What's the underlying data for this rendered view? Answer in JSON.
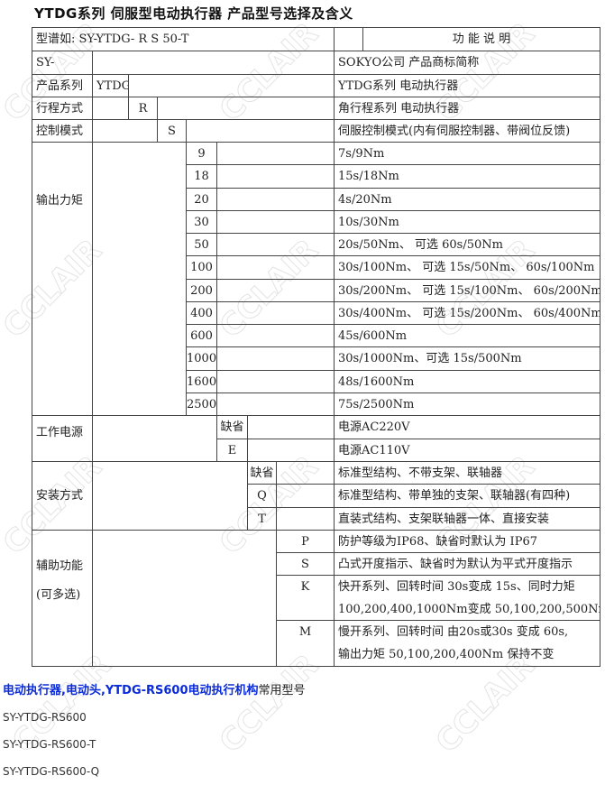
{
  "title": "YTDG系列  伺服型电动执行器  产品型号选择及含义",
  "header": {
    "example": "型谱如:  SY-YTDG- R S 50-T",
    "function": "功 能 说 明"
  },
  "rows": {
    "sy": {
      "code": "SY-",
      "desc": "SOKYO公司 产品商标简称"
    },
    "series": {
      "label": "产品系列",
      "code": "YTDG",
      "desc": "YTDG系列  电动执行器"
    },
    "travel": {
      "label": "行程方式",
      "code": "R",
      "desc": "角行程系列  电动执行器"
    },
    "control": {
      "label": "控制模式",
      "code": "S",
      "desc": "伺服控制模式(内有伺服控制器、带阀位反馈)"
    }
  },
  "torque": {
    "label": "输出力矩",
    "items": [
      {
        "code": "9",
        "desc": "7s/9Nm"
      },
      {
        "code": "18",
        "desc": "15s/18Nm"
      },
      {
        "code": "20",
        "desc": "4s/20Nm"
      },
      {
        "code": "30",
        "desc": "10s/30Nm"
      },
      {
        "code": "50",
        "desc": "20s/50Nm、                  可选 60s/50Nm"
      },
      {
        "code": "100",
        "desc": "30s/100Nm、 可选 15s/50Nm、  60s/100Nm"
      },
      {
        "code": "200",
        "desc": "30s/200Nm、 可选 15s/100Nm、 60s/200Nm"
      },
      {
        "code": "400",
        "desc": "30s/400Nm、 可选 15s/200Nm、 60s/400Nm"
      },
      {
        "code": "600",
        "desc": "45s/600Nm"
      },
      {
        "code": "1000",
        "desc": "30s/1000Nm、可选 15s/500Nm"
      },
      {
        "code": "1600",
        "desc": "48s/1600Nm"
      },
      {
        "code": "2500",
        "desc": "75s/2500Nm"
      }
    ]
  },
  "power": {
    "label": "工作电源",
    "items": [
      {
        "code": "缺省",
        "desc": "电源AC220V"
      },
      {
        "code": "E",
        "desc": "电源AC110V"
      }
    ]
  },
  "mount": {
    "label": "安装方式",
    "items": [
      {
        "code": "缺省",
        "desc": "标准型结构、不带支架、联轴器"
      },
      {
        "code": "Q",
        "desc": "标准型结构、带单独的支架、联轴器(有四种)"
      },
      {
        "code": "T",
        "desc": "直装式结构、支架联轴器一体、直接安装"
      }
    ]
  },
  "aux": {
    "label": "辅助功能",
    "label2": "(可多选)",
    "items": [
      {
        "code": "P",
        "desc": "防护等级为IP68、缺省时默认为 IP67"
      },
      {
        "code": "S",
        "desc": "凸式开度指示、缺省时为默认为平式开度指示"
      },
      {
        "code": "K",
        "desc": "快开系列、回转时间 30s变成 15s、同时力矩",
        "desc2": "100,200,400,1000Nm变成 50,100,200,500Nm"
      },
      {
        "code": "M",
        "desc": "慢开系列、回转时间 由20s或30s 变成 60s,",
        "desc2": "输出力矩 50,100,200,400Nm 保持不变"
      }
    ]
  },
  "footer": {
    "link": "电动执行器,电动头,YTDG-RS600电动执行机构",
    "suffix": "常用型号",
    "models": [
      "SY-YTDG-RS600",
      "SY-YTDG-RS600-T",
      "SY-YTDG-RS600-Q"
    ]
  },
  "watermark": "CCLAIR"
}
